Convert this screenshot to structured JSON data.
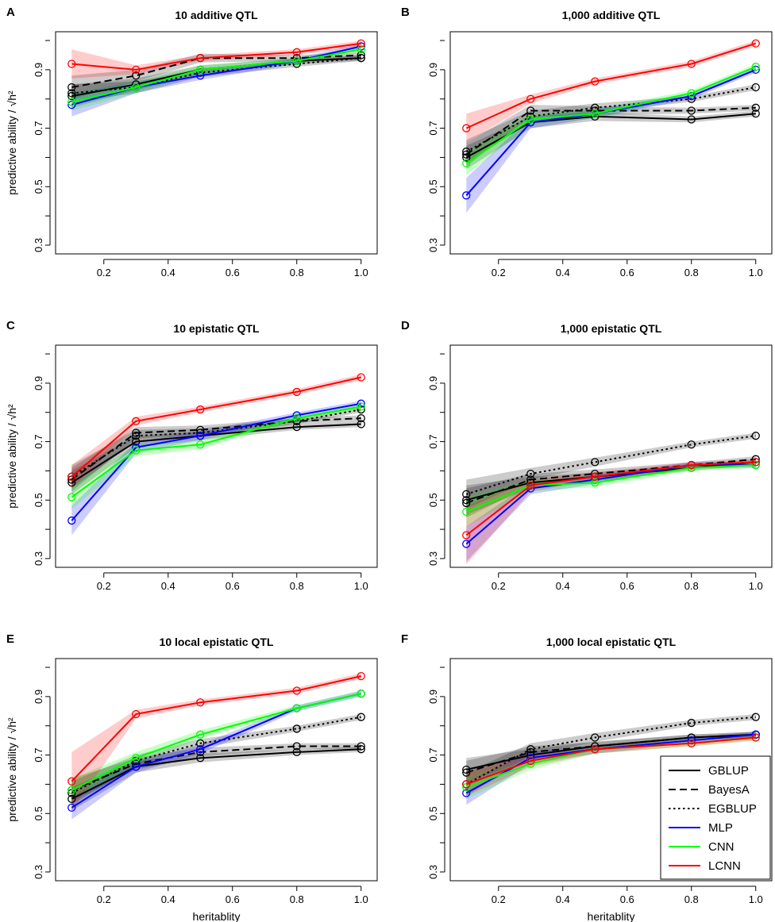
{
  "figure": {
    "shared": {
      "x": [
        0.1,
        0.3,
        0.5,
        0.8,
        1.0
      ],
      "xlabel": "heritablity",
      "ylabel": "predictive ability / √h²",
      "xlim": [
        0.05,
        1.05
      ],
      "ylim": [
        0.27,
        1.03
      ],
      "xticks": [
        0.2,
        0.4,
        0.6,
        0.8,
        1.0
      ],
      "xtick_labels": [
        "0.2",
        "0.4",
        "0.6",
        "0.8",
        "1.0"
      ],
      "yticks": [
        0.3,
        0.5,
        0.7,
        0.9
      ],
      "ytick_labels": [
        "0.3",
        "0.5",
        "0.7",
        "0.9"
      ]
    },
    "models": [
      {
        "name": "GBLUP",
        "color": "#000000",
        "dash": "solid"
      },
      {
        "name": "BayesA",
        "color": "#000000",
        "dash": "dashed"
      },
      {
        "name": "EGBLUP",
        "color": "#000000",
        "dash": "dotted"
      },
      {
        "name": "MLP",
        "color": "#0000ff",
        "dash": "solid"
      },
      {
        "name": "CNN",
        "color": "#00ff00",
        "dash": "solid"
      },
      {
        "name": "LCNN",
        "color": "#ff0000",
        "dash": "solid"
      }
    ],
    "legend": {
      "placement": "bottom-right of panel F",
      "entries": [
        "GBLUP",
        "BayesA",
        "EGBLUP",
        "MLP",
        "CNN",
        "LCNN"
      ]
    }
  },
  "chart_data": [
    {
      "type": "line",
      "letter": "A",
      "title": "10 additive QTL",
      "series": [
        {
          "name": "GBLUP",
          "values": [
            0.81,
            0.85,
            0.9,
            0.93,
            0.94
          ],
          "band": [
            0.04,
            0.02,
            0.015,
            0.01,
            0.01
          ]
        },
        {
          "name": "BayesA",
          "values": [
            0.84,
            0.88,
            0.94,
            0.94,
            0.95
          ],
          "band": [
            0.04,
            0.02,
            0.015,
            0.01,
            0.01
          ]
        },
        {
          "name": "EGBLUP",
          "values": [
            0.82,
            0.84,
            0.89,
            0.92,
            0.94
          ],
          "band": [
            0.03,
            0.02,
            0.015,
            0.01,
            0.01
          ]
        },
        {
          "name": "MLP",
          "values": [
            0.78,
            0.84,
            0.88,
            0.93,
            0.98
          ],
          "band": [
            0.04,
            0.02,
            0.015,
            0.01,
            0.01
          ]
        },
        {
          "name": "CNN",
          "values": [
            0.79,
            0.84,
            0.9,
            0.93,
            0.97
          ],
          "band": [
            0.03,
            0.02,
            0.015,
            0.01,
            0.01
          ]
        },
        {
          "name": "LCNN",
          "values": [
            0.92,
            0.9,
            0.94,
            0.96,
            0.99
          ],
          "band": [
            0.05,
            0.015,
            0.01,
            0.01,
            0.01
          ]
        }
      ]
    },
    {
      "type": "line",
      "letter": "B",
      "title": "1,000 additive QTL",
      "series": [
        {
          "name": "GBLUP",
          "values": [
            0.6,
            0.72,
            0.74,
            0.73,
            0.75
          ],
          "band": [
            0.04,
            0.02,
            0.015,
            0.01,
            0.01
          ]
        },
        {
          "name": "BayesA",
          "values": [
            0.61,
            0.76,
            0.76,
            0.76,
            0.77
          ],
          "band": [
            0.04,
            0.02,
            0.015,
            0.01,
            0.01
          ]
        },
        {
          "name": "EGBLUP",
          "values": [
            0.62,
            0.74,
            0.77,
            0.8,
            0.84
          ],
          "band": [
            0.04,
            0.02,
            0.015,
            0.01,
            0.01
          ]
        },
        {
          "name": "MLP",
          "values": [
            0.47,
            0.72,
            0.75,
            0.81,
            0.9
          ],
          "band": [
            0.06,
            0.02,
            0.015,
            0.01,
            0.01
          ]
        },
        {
          "name": "CNN",
          "values": [
            0.58,
            0.73,
            0.75,
            0.82,
            0.91
          ],
          "band": [
            0.04,
            0.02,
            0.015,
            0.01,
            0.01
          ]
        },
        {
          "name": "LCNN",
          "values": [
            0.7,
            0.8,
            0.86,
            0.92,
            0.99
          ],
          "band": [
            0.05,
            0.015,
            0.01,
            0.01,
            0.01
          ]
        }
      ]
    },
    {
      "type": "line",
      "letter": "C",
      "title": "10 epistatic QTL",
      "series": [
        {
          "name": "GBLUP",
          "values": [
            0.56,
            0.7,
            0.72,
            0.75,
            0.76
          ],
          "band": [
            0.04,
            0.02,
            0.015,
            0.01,
            0.01
          ]
        },
        {
          "name": "BayesA",
          "values": [
            0.57,
            0.73,
            0.74,
            0.77,
            0.78
          ],
          "band": [
            0.04,
            0.02,
            0.015,
            0.01,
            0.01
          ]
        },
        {
          "name": "EGBLUP",
          "values": [
            0.58,
            0.72,
            0.73,
            0.77,
            0.81
          ],
          "band": [
            0.04,
            0.02,
            0.015,
            0.01,
            0.01
          ]
        },
        {
          "name": "MLP",
          "values": [
            0.43,
            0.68,
            0.72,
            0.79,
            0.83
          ],
          "band": [
            0.05,
            0.02,
            0.015,
            0.01,
            0.01
          ]
        },
        {
          "name": "CNN",
          "values": [
            0.51,
            0.67,
            0.69,
            0.78,
            0.82
          ],
          "band": [
            0.04,
            0.02,
            0.015,
            0.01,
            0.01
          ]
        },
        {
          "name": "LCNN",
          "values": [
            0.58,
            0.77,
            0.81,
            0.87,
            0.92
          ],
          "band": [
            0.04,
            0.015,
            0.01,
            0.01,
            0.01
          ]
        }
      ]
    },
    {
      "type": "line",
      "letter": "D",
      "title": "1,000 epistatic QTL",
      "series": [
        {
          "name": "GBLUP",
          "values": [
            0.5,
            0.56,
            0.58,
            0.61,
            0.63
          ],
          "band": [
            0.05,
            0.02,
            0.015,
            0.01,
            0.01
          ]
        },
        {
          "name": "BayesA",
          "values": [
            0.49,
            0.57,
            0.59,
            0.62,
            0.64
          ],
          "band": [
            0.05,
            0.02,
            0.015,
            0.01,
            0.01
          ]
        },
        {
          "name": "EGBLUP",
          "values": [
            0.52,
            0.59,
            0.63,
            0.69,
            0.72
          ],
          "band": [
            0.05,
            0.02,
            0.015,
            0.01,
            0.01
          ]
        },
        {
          "name": "MLP",
          "values": [
            0.35,
            0.54,
            0.57,
            0.62,
            0.62
          ],
          "band": [
            0.06,
            0.02,
            0.015,
            0.01,
            0.01
          ]
        },
        {
          "name": "CNN",
          "values": [
            0.46,
            0.55,
            0.56,
            0.61,
            0.62
          ],
          "band": [
            0.05,
            0.02,
            0.015,
            0.01,
            0.01
          ]
        },
        {
          "name": "LCNN",
          "values": [
            0.38,
            0.55,
            0.58,
            0.62,
            0.63
          ],
          "band": [
            0.1,
            0.02,
            0.015,
            0.01,
            0.01
          ]
        }
      ]
    },
    {
      "type": "line",
      "letter": "E",
      "title": "10 local epistatic QTL",
      "series": [
        {
          "name": "GBLUP",
          "values": [
            0.55,
            0.66,
            0.69,
            0.71,
            0.72
          ],
          "band": [
            0.04,
            0.02,
            0.015,
            0.01,
            0.01
          ]
        },
        {
          "name": "BayesA",
          "values": [
            0.58,
            0.67,
            0.71,
            0.73,
            0.73
          ],
          "band": [
            0.04,
            0.02,
            0.015,
            0.01,
            0.01
          ]
        },
        {
          "name": "EGBLUP",
          "values": [
            0.57,
            0.68,
            0.74,
            0.79,
            0.83
          ],
          "band": [
            0.04,
            0.02,
            0.015,
            0.01,
            0.01
          ]
        },
        {
          "name": "MLP",
          "values": [
            0.52,
            0.66,
            0.72,
            0.86,
            0.91
          ],
          "band": [
            0.04,
            0.02,
            0.015,
            0.01,
            0.01
          ]
        },
        {
          "name": "CNN",
          "values": [
            0.58,
            0.69,
            0.77,
            0.86,
            0.91
          ],
          "band": [
            0.04,
            0.02,
            0.015,
            0.01,
            0.01
          ]
        },
        {
          "name": "LCNN",
          "values": [
            0.61,
            0.84,
            0.88,
            0.92,
            0.97
          ],
          "band": [
            0.1,
            0.015,
            0.01,
            0.01,
            0.01
          ]
        }
      ]
    },
    {
      "type": "line",
      "letter": "F",
      "title": "1,000 local epistatic QTL",
      "series": [
        {
          "name": "GBLUP",
          "values": [
            0.65,
            0.7,
            0.73,
            0.76,
            0.77
          ],
          "band": [
            0.04,
            0.02,
            0.015,
            0.01,
            0.01
          ]
        },
        {
          "name": "BayesA",
          "values": [
            0.64,
            0.71,
            0.73,
            0.76,
            0.77
          ],
          "band": [
            0.04,
            0.02,
            0.015,
            0.01,
            0.01
          ]
        },
        {
          "name": "EGBLUP",
          "values": [
            0.6,
            0.72,
            0.76,
            0.81,
            0.83
          ],
          "band": [
            0.04,
            0.02,
            0.015,
            0.01,
            0.01
          ]
        },
        {
          "name": "MLP",
          "values": [
            0.57,
            0.69,
            0.72,
            0.75,
            0.77
          ],
          "band": [
            0.04,
            0.02,
            0.015,
            0.01,
            0.01
          ]
        },
        {
          "name": "CNN",
          "values": [
            0.59,
            0.67,
            0.72,
            0.74,
            0.76
          ],
          "band": [
            0.04,
            0.02,
            0.015,
            0.01,
            0.01
          ]
        },
        {
          "name": "LCNN",
          "values": [
            0.6,
            0.68,
            0.72,
            0.74,
            0.76
          ],
          "band": [
            0.04,
            0.02,
            0.015,
            0.01,
            0.01
          ]
        }
      ]
    }
  ]
}
